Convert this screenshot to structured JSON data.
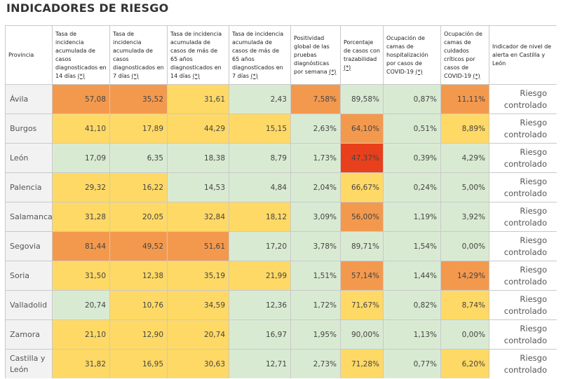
{
  "title": "INDICADORES DE RIESGO",
  "colors": {
    "green": "#d9ead3",
    "yellow": "#ffd966",
    "orange": "#f6b26b",
    "dark_orange": "#f3994e",
    "red": "#e8401c"
  },
  "headers": [
    {
      "text": "Provincia",
      "marker": ""
    },
    {
      "text": "Tasa de incidencia acumulada de casos diagnosticados en 14 días ",
      "marker": "(*)"
    },
    {
      "text": "Tasa de incidencia acumulada de casos diagnosticados en 7 días ",
      "marker": "(*)"
    },
    {
      "text": "Tasa de incidencia acumulada de casos de más de 65 años diagnosticados en 14 días ",
      "marker": "(*)"
    },
    {
      "text": "Tasa de incidencia acumulada de casos de más de 65 años diagnosticados en 7 días ",
      "marker": "(*)"
    },
    {
      "text": "Positividad global de las pruebas diagnósticas por semana ",
      "marker": "(*)"
    },
    {
      "text": "Porcentaje de casos con trazabilidad ",
      "marker": "(*)"
    },
    {
      "text": "Ocupación de camas de hospitalización por casos de COVID-19 ",
      "marker": "(*)"
    },
    {
      "text": "Ocupación de camas de cuidados críticos por casos de COVID-19 ",
      "marker": "(*)"
    },
    {
      "text": "Indicador de nivel de alerta en Castilla y León",
      "marker": ""
    }
  ],
  "rows": [
    {
      "province": "Ávila",
      "values": [
        "57,08",
        "35,52",
        "31,61",
        "2,43",
        "7,58%",
        "89,58%",
        "0,87%",
        "11,11%"
      ],
      "levels": [
        "dark_orange",
        "dark_orange",
        "yellow",
        "green",
        "dark_orange",
        "green",
        "green",
        "dark_orange"
      ],
      "alert": "Riesgo controlado"
    },
    {
      "province": "Burgos",
      "values": [
        "41,10",
        "17,89",
        "44,29",
        "15,15",
        "2,63%",
        "64,10%",
        "0,51%",
        "8,89%"
      ],
      "levels": [
        "yellow",
        "yellow",
        "yellow",
        "yellow",
        "green",
        "dark_orange",
        "green",
        "yellow"
      ],
      "alert": "Riesgo controlado"
    },
    {
      "province": "León",
      "values": [
        "17,09",
        "6,35",
        "18,38",
        "8,79",
        "1,73%",
        "47,37%",
        "0,39%",
        "4,29%"
      ],
      "levels": [
        "green",
        "green",
        "green",
        "green",
        "green",
        "red",
        "green",
        "green"
      ],
      "alert": "Riesgo controlado"
    },
    {
      "province": "Palencia",
      "values": [
        "29,32",
        "16,22",
        "14,53",
        "4,84",
        "2,04%",
        "66,67%",
        "0,24%",
        "5,00%"
      ],
      "levels": [
        "yellow",
        "yellow",
        "green",
        "green",
        "green",
        "yellow",
        "green",
        "green"
      ],
      "alert": "Riesgo controlado"
    },
    {
      "province": "Salamanca",
      "values": [
        "31,28",
        "20,05",
        "32,84",
        "18,12",
        "3,09%",
        "56,00%",
        "1,19%",
        "3,92%"
      ],
      "levels": [
        "yellow",
        "yellow",
        "yellow",
        "yellow",
        "green",
        "dark_orange",
        "green",
        "green"
      ],
      "alert": "Riesgo controlado"
    },
    {
      "province": "Segovia",
      "values": [
        "81,44",
        "49,52",
        "51,61",
        "17,20",
        "3,78%",
        "89,71%",
        "1,54%",
        "0,00%"
      ],
      "levels": [
        "dark_orange",
        "dark_orange",
        "dark_orange",
        "green",
        "green",
        "green",
        "green",
        "green"
      ],
      "alert": "Riesgo controlado"
    },
    {
      "province": "Soria",
      "values": [
        "31,50",
        "12,38",
        "35,19",
        "21,99",
        "1,51%",
        "57,14%",
        "1,44%",
        "14,29%"
      ],
      "levels": [
        "yellow",
        "yellow",
        "yellow",
        "yellow",
        "green",
        "dark_orange",
        "green",
        "dark_orange"
      ],
      "alert": "Riesgo controlado"
    },
    {
      "province": "Valladolid",
      "values": [
        "20,74",
        "10,76",
        "34,59",
        "12,36",
        "1,72%",
        "71,67%",
        "0,82%",
        "8,74%"
      ],
      "levels": [
        "green",
        "yellow",
        "yellow",
        "green",
        "green",
        "yellow",
        "green",
        "yellow"
      ],
      "alert": "Riesgo controlado"
    },
    {
      "province": "Zamora",
      "values": [
        "21,10",
        "12,90",
        "20,74",
        "16,97",
        "1,95%",
        "90,00%",
        "1,13%",
        "0,00%"
      ],
      "levels": [
        "yellow",
        "yellow",
        "yellow",
        "green",
        "green",
        "green",
        "green",
        "green"
      ],
      "alert": "Riesgo controlado"
    },
    {
      "province": "Castilla y León",
      "values": [
        "31,82",
        "16,95",
        "30,63",
        "12,71",
        "2,73%",
        "71,28%",
        "0,77%",
        "6,20%"
      ],
      "levels": [
        "yellow",
        "yellow",
        "yellow",
        "green",
        "green",
        "yellow",
        "green",
        "yellow"
      ],
      "alert": "Riesgo controlado"
    }
  ]
}
